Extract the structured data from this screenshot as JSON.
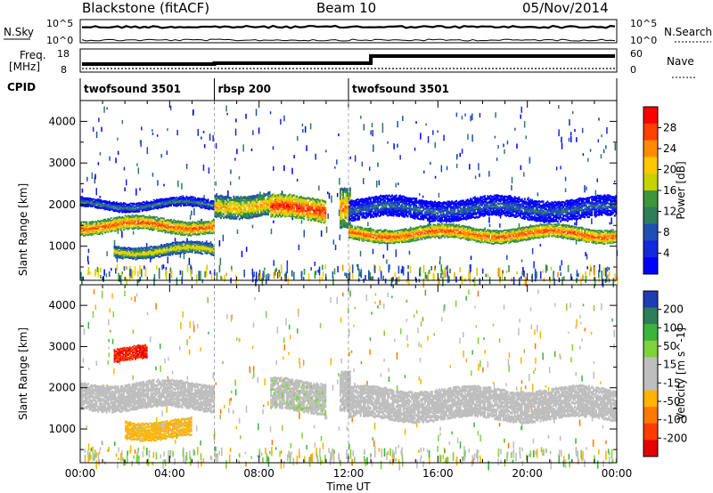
{
  "header": {
    "station": "Blackstone (fitACF)",
    "beam": "Beam 10",
    "date": "05/Nov/2014"
  },
  "noise_panel": {
    "left_label": "N.Sky",
    "left_ticks": [
      "10^5",
      "10^0"
    ],
    "right_ticks": [
      "10^5",
      "10^0"
    ],
    "right_label": "N.Search"
  },
  "freq_panel": {
    "left_label_line1": "Freq.",
    "left_label_line2": "[MHz]",
    "left_ticks": [
      "18",
      "8"
    ],
    "right_ticks": [
      "60",
      "0"
    ],
    "right_label": "Nave"
  },
  "cpid_panel": {
    "label": "CPID",
    "modes": [
      {
        "name": "twofsound 3501",
        "start_hr": 0,
        "end_hr": 6
      },
      {
        "name": "rbsp 200",
        "start_hr": 6,
        "end_hr": 12
      },
      {
        "name": "twofsound 3501",
        "start_hr": 12,
        "end_hr": 24
      }
    ]
  },
  "power_colorbar": {
    "label": "Power [dB]",
    "ticks": [
      "28",
      "24",
      "20",
      "16",
      "12",
      "8",
      "4"
    ],
    "colors": [
      "#ff0000",
      "#ff4000",
      "#ff8c00",
      "#ffc800",
      "#c8d200",
      "#3c963c",
      "#2e7d5a",
      "#1e50b4",
      "#1428dc",
      "#0000ff"
    ]
  },
  "velocity_colorbar": {
    "label": "Velocity [m s^-1]",
    "ticks": [
      "200",
      "100",
      "50",
      "15",
      "-15",
      "-50",
      "-100",
      "-200"
    ],
    "colors": [
      "#1e3cb4",
      "#2e7d5a",
      "#3cb43c",
      "#7ed23c",
      "#bebebe",
      "#bebebe",
      "#ffb400",
      "#ff7800",
      "#ff3c00",
      "#e60000"
    ]
  },
  "x_axis": {
    "label": "Time UT",
    "ticks": [
      "00:00",
      "04:00",
      "08:00",
      "12:00",
      "16:00",
      "20:00",
      "00:00"
    ]
  },
  "y_axis": {
    "label": "Slant Range [km]",
    "ticks": [
      "4000",
      "3000",
      "2000",
      "1000"
    ]
  },
  "chart_data": {
    "type": "heatmap",
    "title": "Blackstone (fitACF) Beam 10 05/Nov/2014",
    "xlabel": "Time UT",
    "ylabel": "Slant Range [km]",
    "xlim_hours": [
      0,
      24
    ],
    "ylim_km": [
      180,
      4500
    ],
    "panels": [
      {
        "name": "Power",
        "unit": "dB",
        "colorbar_range": [
          0,
          30
        ],
        "bands": [
          {
            "t0": 0,
            "t1": 6,
            "r_center": 1500,
            "r_width": 300,
            "value": 26
          },
          {
            "t0": 0,
            "t1": 6,
            "r_center": 2000,
            "r_width": 200,
            "value": 12
          },
          {
            "t0": 1.5,
            "t1": 6,
            "r_center": 900,
            "r_width": 250,
            "value": 20
          },
          {
            "t0": 6,
            "t1": 8.5,
            "r_center": 2000,
            "r_width": 500,
            "value": 22
          },
          {
            "t0": 8.5,
            "t1": 11,
            "r_center": 1900,
            "r_width": 500,
            "value": 28
          },
          {
            "t0": 11.6,
            "t1": 12.1,
            "r_center": 2000,
            "r_width": 900,
            "value": 24
          },
          {
            "t0": 12,
            "t1": 24,
            "r_center": 1300,
            "r_width": 300,
            "value": 26
          },
          {
            "t0": 12,
            "t1": 24,
            "r_center": 1900,
            "r_width": 450,
            "value": 10
          }
        ]
      },
      {
        "name": "Velocity",
        "unit": "m s^-1",
        "colorbar_range": [
          -250,
          250
        ],
        "bands": [
          {
            "t0": 0,
            "t1": 6,
            "r_center": 1800,
            "r_width": 600,
            "value": 0
          },
          {
            "t0": 2,
            "t1": 5,
            "r_center": 1000,
            "r_width": 400,
            "value": -60
          },
          {
            "t0": 1.5,
            "t1": 3,
            "r_center": 2800,
            "r_width": 300,
            "value": -200
          },
          {
            "t0": 8.5,
            "t1": 11,
            "r_center": 1800,
            "r_width": 700,
            "value": 40
          },
          {
            "t0": 11.6,
            "t1": 12.1,
            "r_center": 2000,
            "r_width": 900,
            "value": 30
          },
          {
            "t0": 12,
            "t1": 24,
            "r_center": 1600,
            "r_width": 700,
            "value": 0
          }
        ]
      }
    ]
  }
}
